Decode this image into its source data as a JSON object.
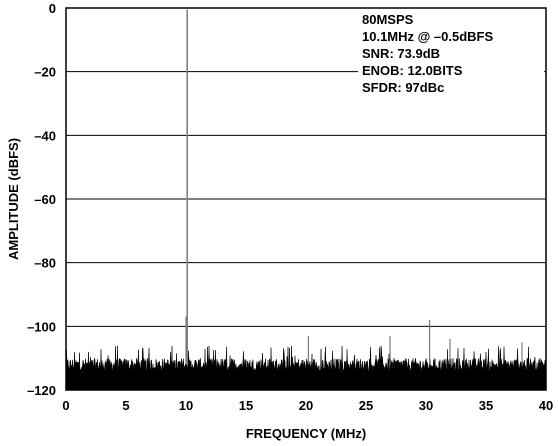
{
  "chart_data": {
    "type": "line",
    "title": "",
    "xlabel": "FREQUENCY (MHz)",
    "ylabel": "AMPLITUDE (dBFS)",
    "xlim": [
      0,
      40
    ],
    "ylim": [
      -120,
      0
    ],
    "xticks": [
      "0",
      "5",
      "10",
      "15",
      "20",
      "25",
      "30",
      "35",
      "40"
    ],
    "yticks": [
      "0",
      "–20",
      "–40",
      "–60",
      "–80",
      "–100",
      "–120"
    ],
    "grid": "horizontal",
    "annotations": [
      "80MSPS",
      "10.1MHz @ –0.5dBFS",
      "SNR: 73.9dB",
      "ENOB: 12.0BITS",
      "SFDR: 97dBc"
    ],
    "annotation_placement": "top-right",
    "noise_floor": {
      "x_range": [
        0,
        40
      ],
      "y_min": -120,
      "y_typical": -112,
      "y_max": -106
    },
    "spurs": [
      {
        "x": 10.1,
        "y": -0.5
      },
      {
        "x": 10.0,
        "y": -97
      },
      {
        "x": 20.2,
        "y": -103
      },
      {
        "x": 27.0,
        "y": -103
      },
      {
        "x": 30.3,
        "y": -98
      },
      {
        "x": 32.0,
        "y": -104
      },
      {
        "x": 38.0,
        "y": -105
      }
    ],
    "colors": {
      "signal": "#808080",
      "noise": "#000000",
      "grid": "#000000"
    }
  }
}
